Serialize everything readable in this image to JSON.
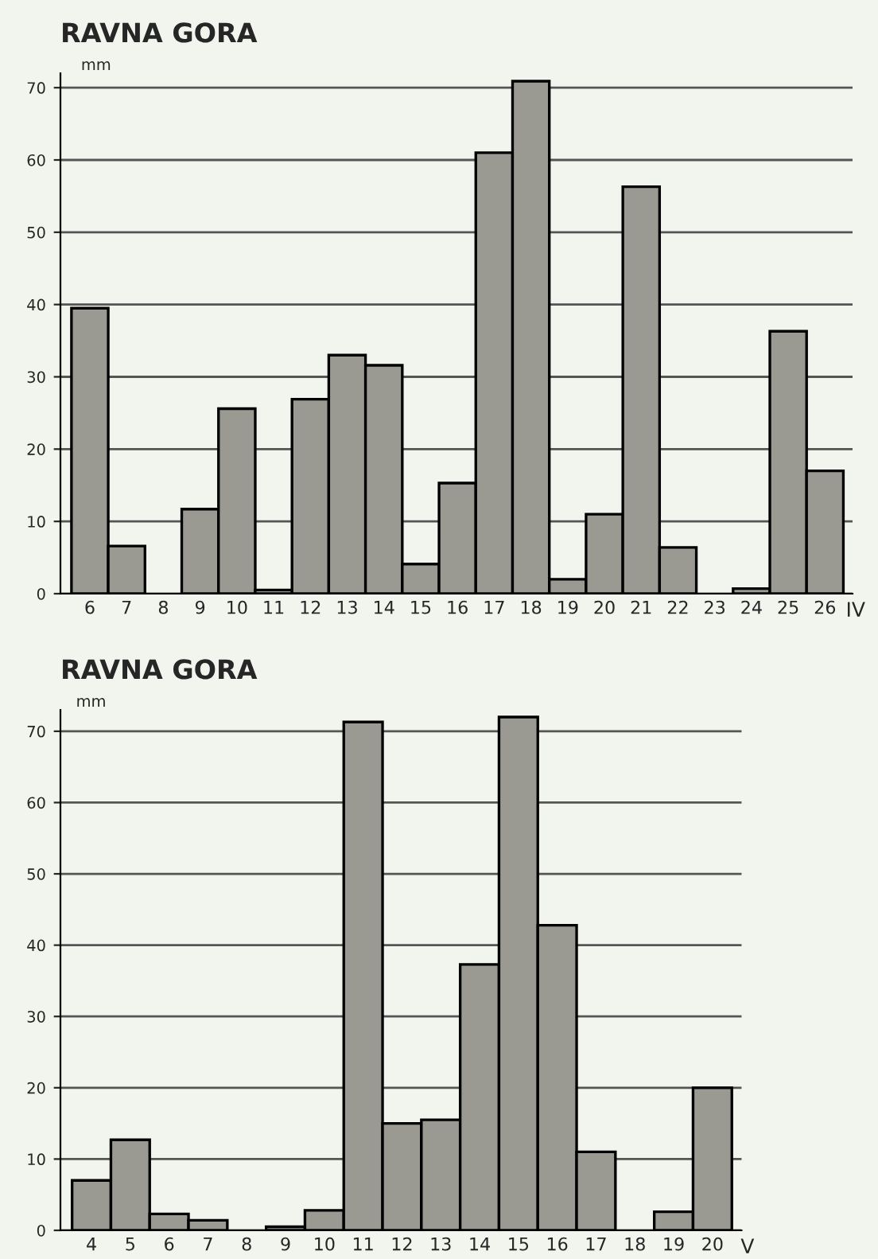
{
  "chart_data": [
    {
      "type": "bar",
      "title": "RAVNA GORA",
      "ylabel": "mm",
      "xlabel": "IV",
      "categories": [
        "6",
        "7",
        "8",
        "9",
        "10",
        "11",
        "12",
        "13",
        "14",
        "15",
        "16",
        "17",
        "18",
        "19",
        "20",
        "21",
        "22",
        "23",
        "24",
        "25",
        "26"
      ],
      "values": [
        39.5,
        6.6,
        null,
        11.7,
        25.6,
        0.5,
        26.9,
        33,
        31.6,
        4.1,
        15.3,
        61,
        70.9,
        2,
        11,
        56.3,
        6.4,
        null,
        0.7,
        36.3,
        17
      ],
      "color": "#9a9a92",
      "ylim": [
        0,
        72
      ],
      "yticks": [
        0,
        10,
        20,
        30,
        40,
        50,
        60,
        70
      ],
      "grid": "y"
    },
    {
      "type": "bar",
      "title": "RAVNA GORA",
      "ylabel": "mm",
      "xlabel": "V",
      "categories": [
        "4",
        "5",
        "6",
        "7",
        "8",
        "9",
        "10",
        "11",
        "12",
        "13",
        "14",
        "15",
        "16",
        "17",
        "18",
        "19",
        "20"
      ],
      "values": [
        7,
        12.7,
        2.3,
        1.4,
        null,
        0.5,
        2.8,
        71.3,
        15,
        15.5,
        37.3,
        72,
        42.8,
        11,
        null,
        2.6,
        20
      ],
      "color": "#9a9a92",
      "ylim": [
        0,
        73
      ],
      "yticks": [
        0,
        10,
        20,
        30,
        40,
        50,
        60,
        70
      ],
      "grid": "y"
    }
  ]
}
